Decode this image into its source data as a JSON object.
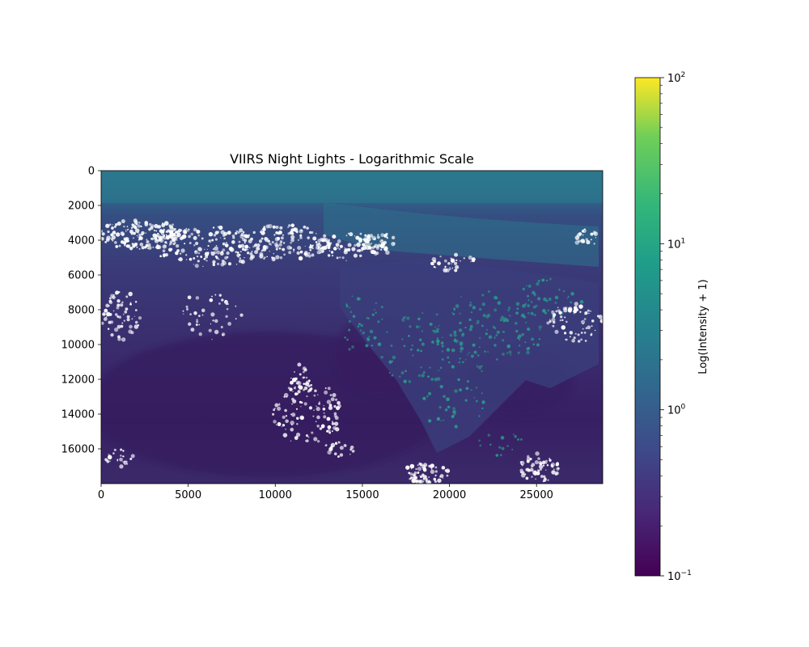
{
  "chart_data": {
    "type": "heatmap",
    "title": "VIIRS Night Lights - Logarithmic Scale",
    "xlabel": "",
    "ylabel": "",
    "xlim": [
      0,
      28800
    ],
    "ylim": [
      18000,
      0
    ],
    "x_ticks": [
      0,
      5000,
      10000,
      15000,
      20000,
      25000
    ],
    "x_tick_labels": [
      "0",
      "5000",
      "10000",
      "15000",
      "20000",
      "25000"
    ],
    "y_ticks": [
      0,
      2000,
      4000,
      6000,
      8000,
      10000,
      12000,
      14000,
      16000
    ],
    "y_tick_labels": [
      "0",
      "2000",
      "4000",
      "6000",
      "8000",
      "10000",
      "12000",
      "14000",
      "16000"
    ],
    "colorbar": {
      "label": "Log(Intensity + 1)",
      "scale": "log",
      "range": [
        0.1,
        100
      ],
      "colormap": "viridis",
      "ticks": [
        {
          "value": 0.1,
          "base": "10",
          "exp": "−1"
        },
        {
          "value": 1,
          "base": "10",
          "exp": "0"
        },
        {
          "value": 10,
          "base": "10",
          "exp": "1"
        },
        {
          "value": 100,
          "base": "10",
          "exp": "2"
        }
      ]
    },
    "grid": false,
    "colors": {
      "cmap_low": "#440154",
      "cmap_mid": "#21918c",
      "cmap_high": "#fde725",
      "map_base": "#38306e",
      "map_dark": "#37185f",
      "arctic": "#2c6f8b",
      "city_light": "#2a9a8a",
      "cloud_white": "#ffffff"
    }
  }
}
